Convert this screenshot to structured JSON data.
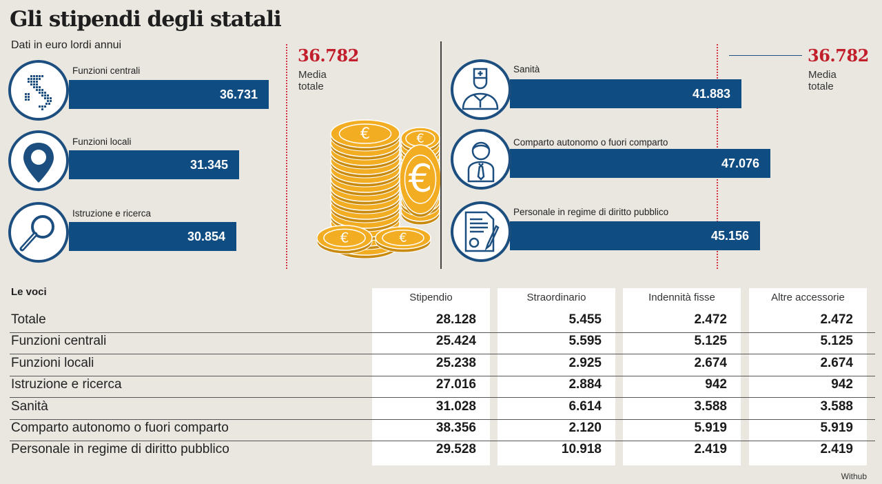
{
  "title": "Gli stipendi degli statali",
  "subtitle": "Dati in euro lordi annui",
  "average": {
    "value": "36.782",
    "label_line1": "Media",
    "label_line2": "totale"
  },
  "colors": {
    "bar": "#0f4c81",
    "average": "#c21f2c",
    "background": "#e9e7e0"
  },
  "chart_data": [
    {
      "type": "bar",
      "orientation": "horizontal",
      "reference_line": {
        "value": 36782,
        "label": "Media totale"
      },
      "categories": [
        "Funzioni centrali",
        "Funzioni locali",
        "Istruzione e ricerca"
      ],
      "values": [
        36731,
        31345,
        30854
      ],
      "labels": [
        "36.731",
        "31.345",
        "30.854"
      ],
      "icons": [
        "italy-map-icon",
        "map-pin-icon",
        "magnifier-icon"
      ]
    },
    {
      "type": "bar",
      "orientation": "horizontal",
      "reference_line": {
        "value": 36782,
        "label": "Media totale"
      },
      "categories": [
        "Sanità",
        "Comparto autonomo o fuori comparto",
        "Personale in regime di diritto pubblico"
      ],
      "values": [
        41883,
        47076,
        45156
      ],
      "labels": [
        "41.883",
        "47.076",
        "45.156"
      ],
      "icons": [
        "doctor-icon",
        "employee-icon",
        "contract-icon"
      ]
    },
    {
      "type": "table",
      "title": "Le voci",
      "columns": [
        "Stipendio",
        "Straordinario",
        "Indennità fisse",
        "Altre accessorie"
      ],
      "rows": [
        {
          "label": "Totale",
          "values": [
            "28.128",
            "5.455",
            "2.472",
            "2.472"
          ]
        },
        {
          "label": "Funzioni centrali",
          "values": [
            "25.424",
            "5.595",
            "5.125",
            "5.125"
          ]
        },
        {
          "label": "Funzioni locali",
          "values": [
            "25.238",
            "2.925",
            "2.674",
            "2.674"
          ]
        },
        {
          "label": "Istruzione e ricerca",
          "values": [
            "27.016",
            "2.884",
            "942",
            "942"
          ]
        },
        {
          "label": "Sanità",
          "values": [
            "31.028",
            "6.614",
            "3.588",
            "3.588"
          ]
        },
        {
          "label": "Comparto autonomo o fuori comparto",
          "values": [
            "38.356",
            "2.120",
            "5.919",
            "5.919"
          ]
        },
        {
          "label": "Personale in regime di diritto pubblico",
          "values": [
            "29.528",
            "10.918",
            "2.419",
            "2.419"
          ]
        }
      ]
    }
  ],
  "source": "Withub"
}
